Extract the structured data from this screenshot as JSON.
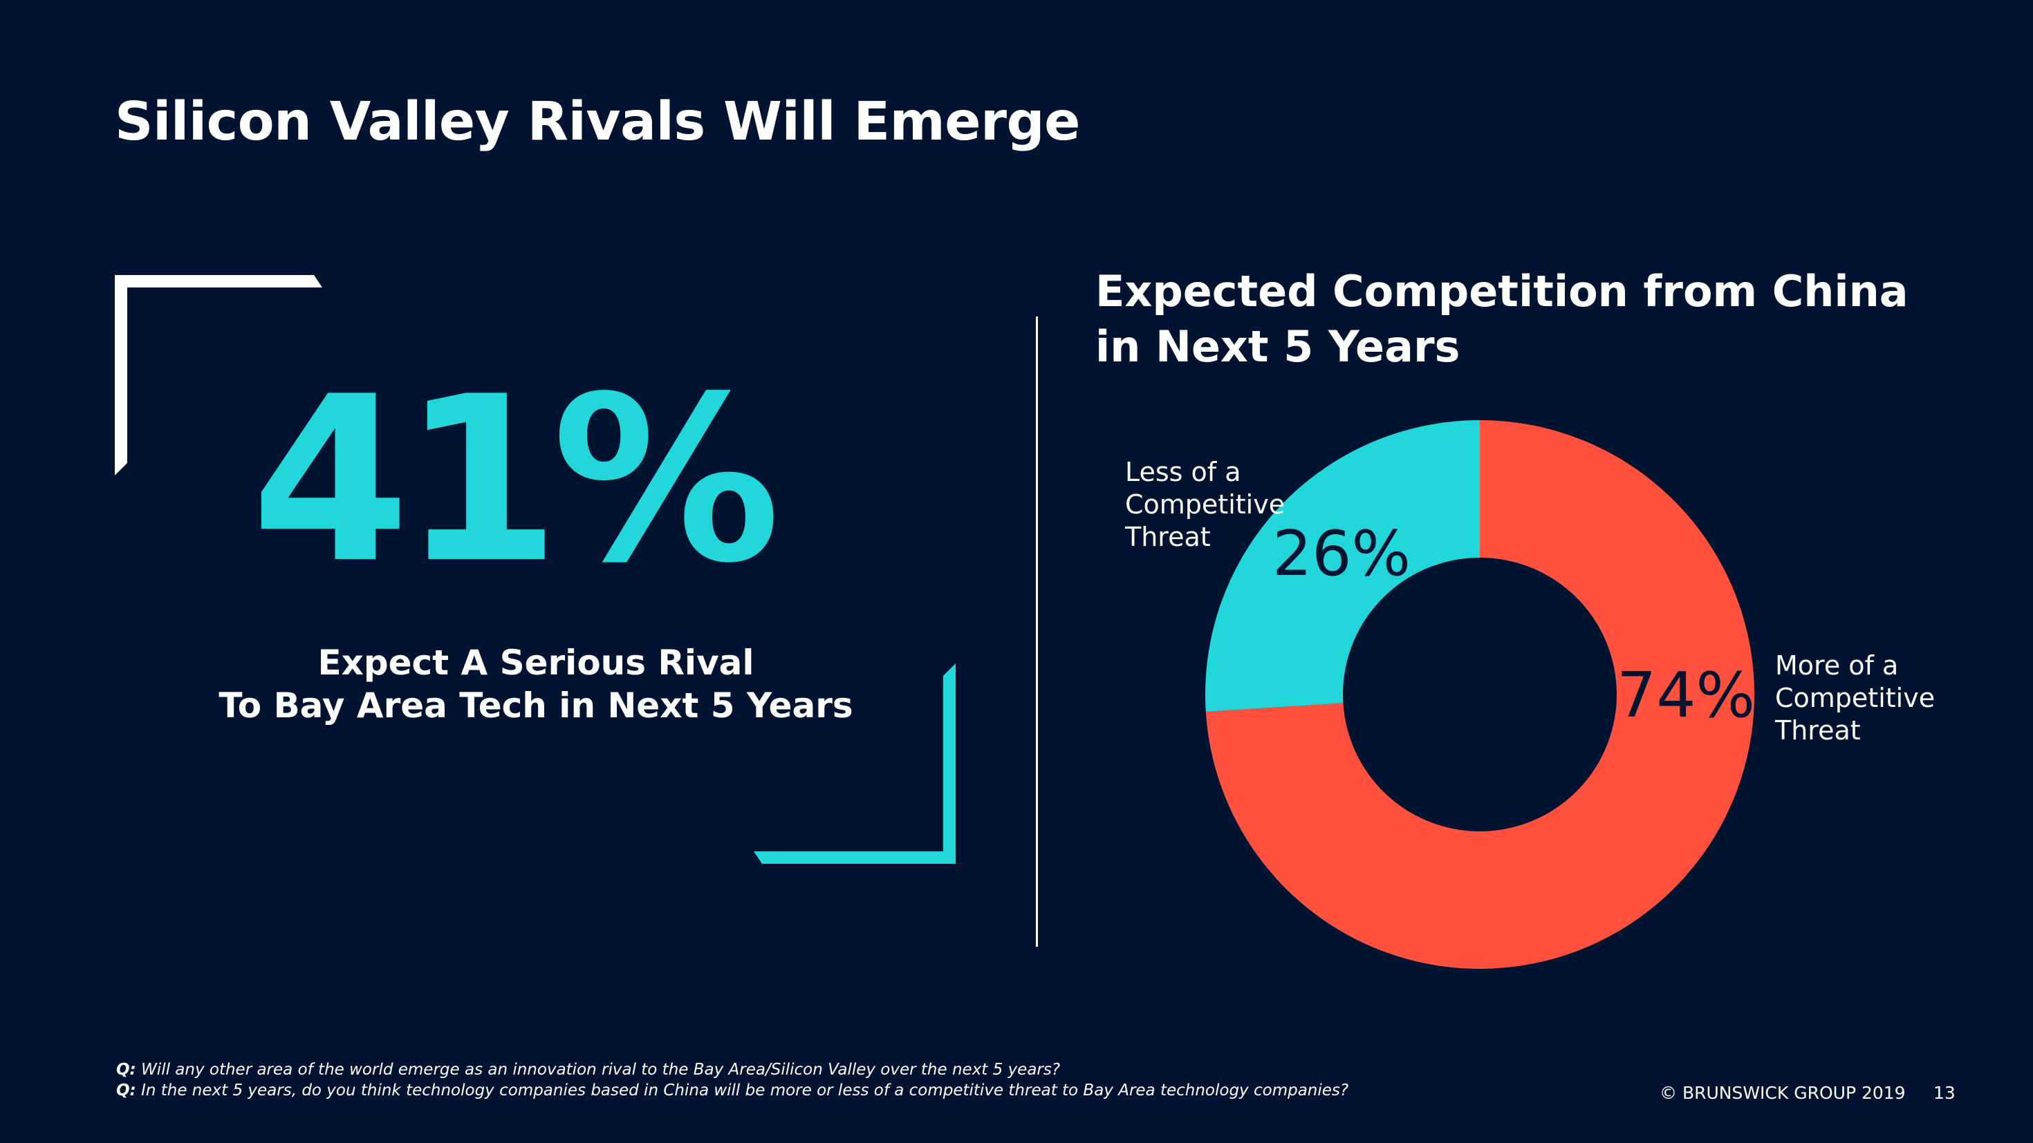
{
  "slide": {
    "title": "Silicon Valley Rivals Will Emerge",
    "big_stat": "41%",
    "stat_caption_line1": "Expect A Serious Rival",
    "stat_caption_line2": "To Bay Area Tech in Next 5 Years",
    "footnotes": [
      {
        "prefix": "Q:",
        "text": "Will any other area of the world emerge as an innovation rival to the Bay Area/Silicon Valley over the next 5 years?"
      },
      {
        "prefix": "Q:",
        "text": "In the next 5 years, do you think technology companies based in China will be more or less of a competitive threat to Bay Area technology companies?"
      }
    ],
    "copyright": "© BRUNSWICK GROUP 2019",
    "page_number": "13"
  },
  "colors": {
    "background": "#001330",
    "accent_teal": "#22D7D9",
    "accent_red": "#FF513D",
    "text": "#FFFFFF"
  },
  "chart_data": {
    "type": "pie",
    "title": "Expected Competition from China in Next 5 Years",
    "slices": [
      {
        "label": "Less of a Competitive Threat",
        "label_lines": [
          "Less of a",
          "Competitive",
          "Threat"
        ],
        "value": 26,
        "display": "26%",
        "color": "#22D7D9"
      },
      {
        "label": "More of a Competitive Threat",
        "label_lines": [
          "More of a",
          "Competitive",
          "Threat"
        ],
        "value": 74,
        "display": "74%",
        "color": "#FF513D"
      }
    ],
    "donut": true,
    "start": "top",
    "direction": "counterclockwise-from-less"
  }
}
